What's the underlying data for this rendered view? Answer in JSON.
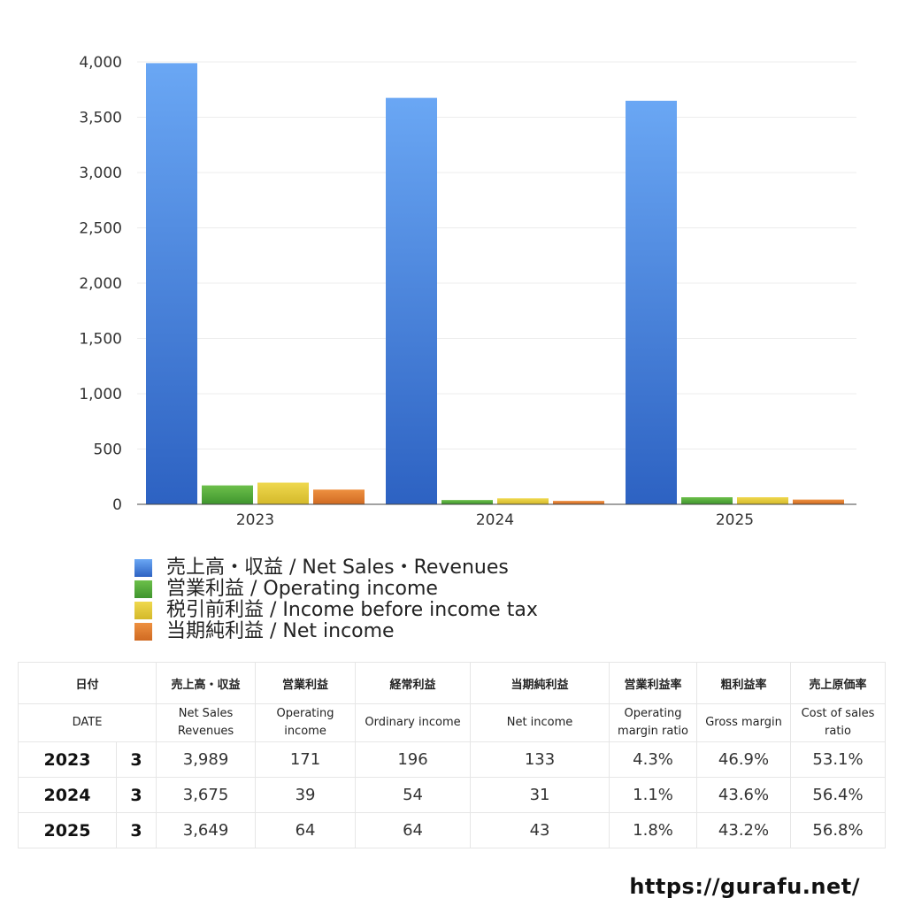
{
  "chart_data": {
    "type": "bar",
    "categories": [
      "2023",
      "2024",
      "2025"
    ],
    "ylim": [
      0,
      4000
    ],
    "yticks": [
      0,
      500,
      1000,
      1500,
      2000,
      2500,
      3000,
      3500,
      4000
    ],
    "ytick_labels": [
      "0",
      "500",
      "1,000",
      "1,500",
      "2,000",
      "2,500",
      "3,000",
      "3,500",
      "4,000"
    ],
    "grid": true,
    "legend_position": "bottom",
    "series": [
      {
        "name": "売上高・収益 / Net Sales・Revenues",
        "values": [
          3989,
          3675,
          3649
        ],
        "color_top": "#6aa7f4",
        "color_bottom": "#2d62c2"
      },
      {
        "name": "営業利益 / Operating income",
        "values": [
          171,
          39,
          64
        ],
        "color_top": "#6cbf4a",
        "color_bottom": "#3f952e"
      },
      {
        "name": "税引前利益 / Income before income tax",
        "values": [
          196,
          54,
          64
        ],
        "color_top": "#efd84e",
        "color_bottom": "#d4b92a"
      },
      {
        "name": "当期純利益 / Net income",
        "values": [
          133,
          31,
          43
        ],
        "color_top": "#ee9040",
        "color_bottom": "#d06a22"
      }
    ]
  },
  "table": {
    "headers_ja": [
      "日付",
      "売上高・収益",
      "営業利益",
      "経常利益",
      "当期純利益",
      "営業利益率",
      "粗利益率",
      "売上原価率"
    ],
    "headers_en": [
      "DATE",
      "Net Sales\nRevenues",
      "Operating\nincome",
      "Ordinary income",
      "Net income",
      "Operating\nmargin ratio",
      "Gross margin",
      "Cost of sales\nratio"
    ],
    "rows": [
      {
        "year": "2023",
        "month": "3",
        "values": [
          "3,989",
          "171",
          "196",
          "133",
          "4.3%",
          "46.9%",
          "53.1%"
        ]
      },
      {
        "year": "2024",
        "month": "3",
        "values": [
          "3,675",
          "39",
          "54",
          "31",
          "1.1%",
          "43.6%",
          "56.4%"
        ]
      },
      {
        "year": "2025",
        "month": "3",
        "values": [
          "3,649",
          "64",
          "64",
          "43",
          "1.8%",
          "43.2%",
          "56.8%"
        ]
      }
    ]
  },
  "footer": {
    "url": "https://gurafu.net/"
  }
}
